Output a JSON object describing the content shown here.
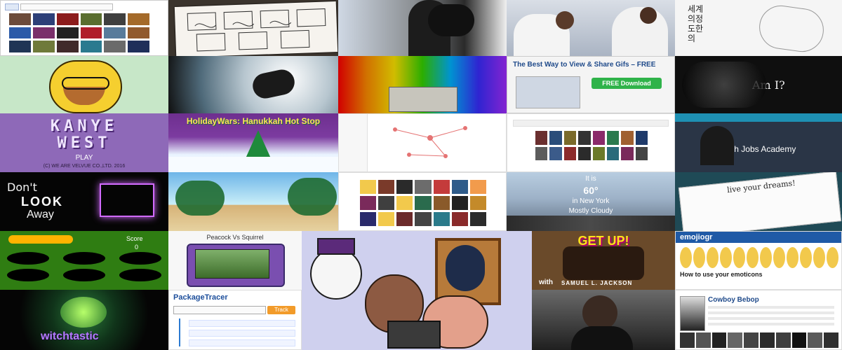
{
  "tiles": {
    "korean_text": "세계\n의정\n도한\n의",
    "am_i": "Am I?",
    "kanye_line1": "KANYE",
    "kanye_line2": "WEST",
    "kanye_play": "PLAY",
    "kanye_copyright": "(C) WE ARE VELVUE CO.,LTD. 2016",
    "holiday_title": "HolidayWars: Hanukkah Hot Stop",
    "gif_banner_title": "The Best Way to View & Share Gifs – FREE",
    "gif_download_button": "FREE Download",
    "tech_jobs_academy": "Tech Jobs Academy",
    "dont_look_away_l1": "Don't",
    "dont_look_away_l2": "LOOK",
    "dont_look_away_l3": "Away",
    "weather_l1": "It is",
    "weather_l2": "60°",
    "weather_l3": "in New York",
    "weather_l4": "Mostly Cloudy",
    "live_your_dreams": "live your dreams!",
    "whack_score_label": "Score",
    "whack_score_value": "0",
    "peacock_title": "Peacock Vs Squirrel",
    "get_up_title": "GET UP!",
    "get_up_with": "with",
    "get_up_name": "SAMUEL L. JACKSON",
    "emoji_logo": "emojiogr",
    "emoji_how_to": "How to use your emoticons",
    "package_tracer": "PackageTracer",
    "package_button": "Track",
    "witchtastic": "witchtastic",
    "cowboy_bebop": "Cowboy Bebop"
  },
  "colors": {
    "kanye_bg": "#8e69b8",
    "holiday_bg": "#6e2f8f",
    "gif_green": "#2fb34a",
    "whack_bg": "#2f7d12",
    "weather_sky": "#b8cde0"
  }
}
